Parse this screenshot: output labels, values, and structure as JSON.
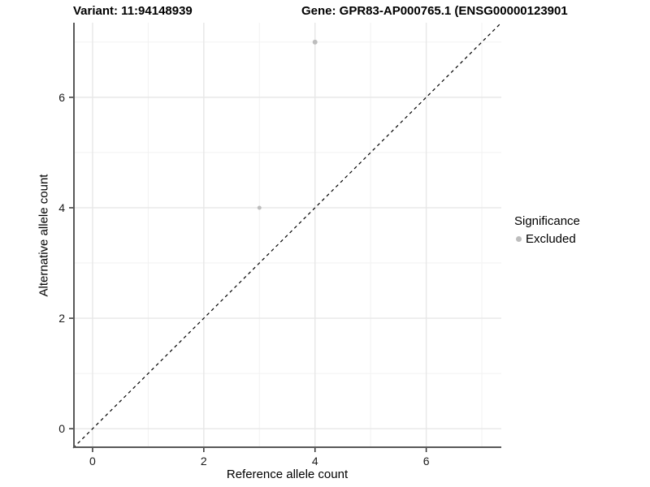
{
  "titles": {
    "variant": "Variant: 11:94148939",
    "gene": "Gene: GPR83-AP000765.1 (ENSG00000123901"
  },
  "chart_data": {
    "type": "scatter",
    "title_left": "Variant: 11:94148939",
    "title_right": "Gene: GPR83-AP000765.1 (ENSG00000123901",
    "xlabel": "Reference allele count",
    "ylabel": "Alternative allele count",
    "xlim": [
      -0.35,
      7.35
    ],
    "ylim": [
      -0.35,
      7.35
    ],
    "x_major_ticks": [
      0,
      2,
      4,
      6
    ],
    "y_major_ticks": [
      0,
      2,
      4,
      6
    ],
    "x_minor_gridlines": [
      1,
      3,
      5,
      7
    ],
    "y_minor_gridlines": [
      1,
      3,
      5,
      7
    ],
    "grid": true,
    "series": [
      {
        "name": "Excluded",
        "color": "#bdbdbd",
        "points": [
          {
            "x": 4,
            "y": 7,
            "r": 3
          },
          {
            "x": 3,
            "y": 4,
            "r": 2.5
          }
        ]
      }
    ],
    "reference_line": {
      "kind": "identity",
      "style": "dashed",
      "color": "#000000"
    },
    "legend": {
      "position": "right",
      "title": "Significance",
      "items": [
        {
          "label": "Excluded",
          "color": "#bdbdbd"
        }
      ]
    }
  },
  "colors": {
    "background": "#ffffff",
    "axis_line": "#595959",
    "tick_mark": "#333333",
    "major_grid": "#e7e7e7",
    "minor_grid": "#f2f2f2",
    "point": "#bdbdbd",
    "dashed_line": "#000000"
  }
}
